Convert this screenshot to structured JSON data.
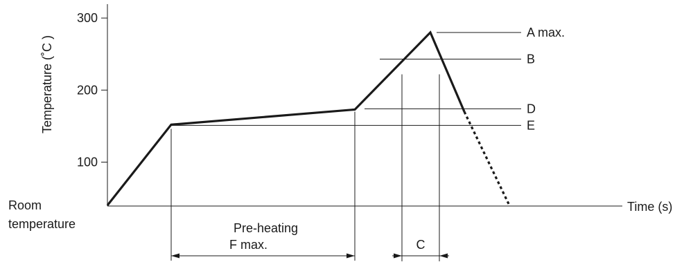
{
  "chart_data": {
    "type": "line",
    "title": "",
    "ylabel": "Temperature (˚C )",
    "xlabel": "Time (s)",
    "ylim": [
      38,
      320
    ],
    "yticks": [
      100,
      200,
      300
    ],
    "ytick_labels": [
      "100",
      "200",
      "300"
    ],
    "origin_label_line1": "Room",
    "origin_label_line2": "temperature",
    "grid": false,
    "profile": {
      "points": [
        {
          "t": 0,
          "temp": 40
        },
        {
          "t": 92,
          "temp": 152
        },
        {
          "t": 357,
          "temp": 173
        },
        {
          "t": 466,
          "temp": 280
        },
        {
          "t": 515,
          "temp": 170
        }
      ],
      "cooling_continuation": [
        {
          "t": 515,
          "temp": 170
        },
        {
          "t": 580,
          "temp": 40
        }
      ]
    },
    "reference_levels": [
      {
        "label": "A max.",
        "temp": 280,
        "t_from": 475
      },
      {
        "label": "B",
        "temp": 243,
        "t_from": 393
      },
      {
        "label": "D",
        "temp": 174,
        "t_from": 371
      },
      {
        "label": "E",
        "temp": 151,
        "t_from": 92
      }
    ],
    "intervals": [
      {
        "label_line1": "Pre-heating",
        "label_line2": "F max.",
        "t_start": 92,
        "t_end": 357
      },
      {
        "label_line1": "C",
        "label_line2": "",
        "t_start": 425,
        "t_end": 479
      }
    ]
  }
}
